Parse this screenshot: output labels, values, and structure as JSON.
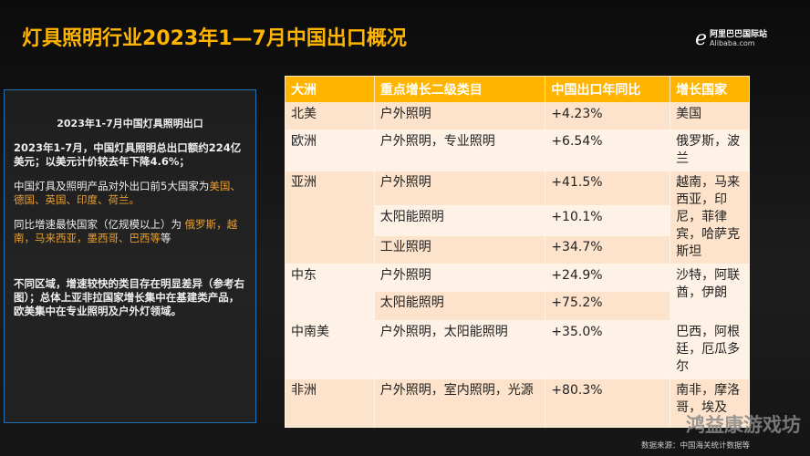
{
  "title": "灯具照明行业2023年1—7月中国出口概况",
  "logo": {
    "cn": "阿里巴巴国际站",
    "en": "Alibaba.com"
  },
  "panel": {
    "heading": "2023年1-7月中国灯具照明出口",
    "p1": "2023年1-7月，中国灯具照明总出口额约224亿美元；以美元计价较去年下降4.6%；",
    "p2_text": "中国灯具及照明产品对外出口前5大国家为",
    "p2_highlight": "美国、德国、英国、印度、荷兰。",
    "p3_text": "同比增速最快国家（亿规模以上）为 ",
    "p3_highlight": "俄罗斯，越南，马来西亚，墨西哥、巴西等",
    "p3_tail": "等",
    "p4": "不同区域，增速较快的类目存在明显差异（参考右图）；总体上亚非拉国家增长集中在基建类产品，欧美集中在专业照明及户外灯领域。"
  },
  "table": {
    "headers": [
      "大洲",
      "重点增长二级类目",
      "中国出口年同比",
      "增长国家"
    ],
    "regions": [
      {
        "name": "北美",
        "countries": "美国",
        "items": [
          {
            "category": "户外照明",
            "growth": "+4.23%"
          }
        ]
      },
      {
        "name": "欧洲",
        "countries": "俄罗斯，波兰",
        "items": [
          {
            "category": "户外照明，专业照明",
            "growth": "+6.54%"
          }
        ]
      },
      {
        "name": "亚洲",
        "countries": "越南，马来西亚，印尼，菲律宾，哈萨克斯坦",
        "items": [
          {
            "category": "户外照明",
            "growth": "+41.5%"
          },
          {
            "category": "太阳能照明",
            "growth": "+10.1%"
          },
          {
            "category": "工业照明",
            "growth": "+34.7%"
          }
        ]
      },
      {
        "name": "中东",
        "countries": "沙特，阿联酋，伊朗",
        "items": [
          {
            "category": "户外照明",
            "growth": "+24.9%"
          },
          {
            "category": "太阳能照明",
            "growth": "+75.2%"
          }
        ]
      },
      {
        "name": "中南美",
        "countries": "巴西，阿根廷，厄瓜多尔",
        "items": [
          {
            "category": "户外照明，太阳能照明",
            "growth": "+35.0%"
          }
        ]
      },
      {
        "name": "非洲",
        "countries": "南非，摩洛哥，埃及",
        "items": [
          {
            "category": "户外照明，室内照明，光源",
            "growth": "+80.3%"
          }
        ]
      }
    ]
  },
  "watermark": "鸿益康游戏坊",
  "source": "数据来源：中国海关统计数据等",
  "colors": {
    "accent": "#ffb400",
    "row_dark": "#fde3cb",
    "row_light": "#fef1e6"
  }
}
